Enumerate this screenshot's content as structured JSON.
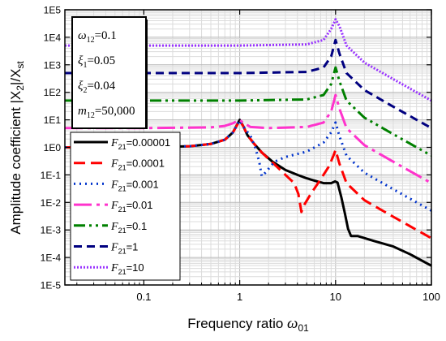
{
  "chart_data": {
    "type": "line",
    "xlabel_text": "Frequency ratio ",
    "xlabel_symbol": "ω",
    "xlabel_sub": "01",
    "ylabel": "Amplitude coefficient |X",
    "ylabel_sub": "2",
    "ylabel_tail": "|/X",
    "ylabel_sub2": "st",
    "x_scale": "log",
    "y_scale": "log",
    "xlim": [
      0.015,
      100
    ],
    "ylim": [
      1e-05,
      100000
    ],
    "x_ticks": [
      {
        "value": 0.1,
        "label": "0.1"
      },
      {
        "value": 1,
        "label": "1"
      },
      {
        "value": 10,
        "label": "10"
      },
      {
        "value": 100,
        "label": "100"
      }
    ],
    "y_ticks": [
      {
        "value": 1e-05,
        "label": "1E-5"
      },
      {
        "value": 0.0001,
        "label": "1E-4"
      },
      {
        "value": 0.001,
        "label": "1E-3"
      },
      {
        "value": 0.01,
        "label": "1E-2"
      },
      {
        "value": 0.1,
        "label": "1E-1"
      },
      {
        "value": 1,
        "label": "1E0"
      },
      {
        "value": 10,
        "label": "1E1"
      },
      {
        "value": 100,
        "label": "1E2"
      },
      {
        "value": 1000,
        "label": "1E3"
      },
      {
        "value": 10000,
        "label": "1E4"
      },
      {
        "value": 100000,
        "label": "1E5"
      }
    ],
    "grid": true,
    "legend_position": "left-middle",
    "parameters_box": {
      "position": "top-left",
      "items": [
        {
          "symbol": "ω",
          "sub": "12",
          "value": "=0.1"
        },
        {
          "symbol": "ξ",
          "sub": "1",
          "value": "=0.05"
        },
        {
          "symbol": "ξ",
          "sub": "2",
          "value": "=0.04"
        },
        {
          "symbol": "m",
          "sub": "12",
          "value": "=50,000"
        }
      ]
    },
    "series": [
      {
        "name": "=0.00001",
        "legend_symbol": "F",
        "legend_sub": "21",
        "color": "#000000",
        "dash": "solid",
        "points": [
          [
            0.015,
            1.0
          ],
          [
            0.1,
            1.0
          ],
          [
            0.3,
            1.1
          ],
          [
            0.5,
            1.33
          ],
          [
            0.7,
            1.9
          ],
          [
            0.85,
            3.5
          ],
          [
            1.0,
            10
          ],
          [
            1.1,
            5.5
          ],
          [
            1.2,
            2.8
          ],
          [
            1.4,
            1.4
          ],
          [
            1.7,
            0.65
          ],
          [
            2.2,
            0.3
          ],
          [
            3.0,
            0.15
          ],
          [
            4.0,
            0.1
          ],
          [
            5.0,
            0.075
          ],
          [
            6.0,
            0.062
          ],
          [
            7.5,
            0.05
          ],
          [
            9.0,
            0.05
          ],
          [
            9.9,
            0.058
          ],
          [
            10.5,
            0.052
          ],
          [
            11.5,
            0.015
          ],
          [
            12.5,
            0.004
          ],
          [
            13.5,
            0.0011
          ],
          [
            14.5,
            0.0006
          ],
          [
            17,
            0.0006
          ],
          [
            25,
            0.0004
          ],
          [
            40,
            0.00025
          ],
          [
            60,
            0.00013
          ],
          [
            100,
            5e-05
          ]
        ]
      },
      {
        "name": "=0.0001",
        "legend_symbol": "F",
        "legend_sub": "21",
        "color": "#ff0000",
        "dash": "14,7",
        "points": [
          [
            0.015,
            1.0
          ],
          [
            0.1,
            1.0
          ],
          [
            0.3,
            1.1
          ],
          [
            0.5,
            1.33
          ],
          [
            0.7,
            1.9
          ],
          [
            0.85,
            3.5
          ],
          [
            1.0,
            9.5
          ],
          [
            1.1,
            5.5
          ],
          [
            1.2,
            2.8
          ],
          [
            1.4,
            1.4
          ],
          [
            1.7,
            0.65
          ],
          [
            2.2,
            0.28
          ],
          [
            3.0,
            0.1
          ],
          [
            3.7,
            0.05
          ],
          [
            4.1,
            0.02
          ],
          [
            4.4,
            0.0045
          ],
          [
            4.7,
            0.008
          ],
          [
            5.5,
            0.02
          ],
          [
            7.0,
            0.07
          ],
          [
            8.5,
            0.2
          ],
          [
            9.5,
            0.5
          ],
          [
            10,
            0.8
          ],
          [
            11,
            0.25
          ],
          [
            13,
            0.05
          ],
          [
            20,
            0.012
          ],
          [
            40,
            0.003
          ],
          [
            100,
            0.0005
          ]
        ]
      },
      {
        "name": "=0.001",
        "legend_symbol": "F",
        "legend_sub": "21",
        "color": "#0033cc",
        "dash": "2,5",
        "points": [
          [
            0.015,
            1.0
          ],
          [
            0.1,
            1.0
          ],
          [
            0.3,
            1.1
          ],
          [
            0.5,
            1.33
          ],
          [
            0.7,
            1.9
          ],
          [
            0.85,
            3.5
          ],
          [
            1.0,
            9.5
          ],
          [
            1.1,
            5.5
          ],
          [
            1.3,
            2.5
          ],
          [
            1.45,
            1.0
          ],
          [
            1.6,
            0.3
          ],
          [
            1.7,
            0.09
          ],
          [
            1.85,
            0.12
          ],
          [
            2.3,
            0.3
          ],
          [
            3.0,
            0.45
          ],
          [
            5.0,
            0.7
          ],
          [
            7.5,
            1.5
          ],
          [
            9.0,
            3.5
          ],
          [
            10,
            8
          ],
          [
            11,
            2.5
          ],
          [
            13,
            0.5
          ],
          [
            20,
            0.12
          ],
          [
            40,
            0.03
          ],
          [
            100,
            0.005
          ]
        ]
      },
      {
        "name": "=0.01",
        "legend_symbol": "F",
        "legend_sub": "21",
        "color": "#ff33cc",
        "dash": "22,6,4,6",
        "points": [
          [
            0.015,
            5.0
          ],
          [
            0.1,
            5.0
          ],
          [
            0.5,
            5.3
          ],
          [
            0.7,
            6.0
          ],
          [
            0.85,
            7.5
          ],
          [
            1.0,
            10
          ],
          [
            1.1,
            7.5
          ],
          [
            1.3,
            5.5
          ],
          [
            2.0,
            5.0
          ],
          [
            5.0,
            5.5
          ],
          [
            7.5,
            8
          ],
          [
            9.0,
            20
          ],
          [
            10,
            80
          ],
          [
            11,
            25
          ],
          [
            13,
            5
          ],
          [
            20,
            1.2
          ],
          [
            40,
            0.3
          ],
          [
            100,
            0.05
          ]
        ]
      },
      {
        "name": "=0.1",
        "legend_symbol": "F",
        "legend_sub": "21",
        "color": "#008000",
        "dash": "14,5,3,5,3,5",
        "points": [
          [
            0.015,
            50
          ],
          [
            0.1,
            50
          ],
          [
            1.0,
            50
          ],
          [
            5.0,
            55
          ],
          [
            7.5,
            80
          ],
          [
            9.0,
            200
          ],
          [
            10,
            800
          ],
          [
            11,
            250
          ],
          [
            13,
            50
          ],
          [
            20,
            12
          ],
          [
            40,
            3
          ],
          [
            100,
            0.5
          ]
        ]
      },
      {
        "name": "=1",
        "legend_symbol": "F",
        "legend_sub": "21",
        "color": "#000080",
        "dash": "10,6",
        "points": [
          [
            0.015,
            500
          ],
          [
            0.1,
            500
          ],
          [
            1.0,
            500
          ],
          [
            5.0,
            550
          ],
          [
            7.5,
            800
          ],
          [
            9.0,
            2000
          ],
          [
            10,
            8000
          ],
          [
            11,
            2500
          ],
          [
            13,
            500
          ],
          [
            20,
            120
          ],
          [
            40,
            30
          ],
          [
            100,
            5
          ]
        ]
      },
      {
        "name": "=10",
        "legend_symbol": "F",
        "legend_sub": "21",
        "color": "#9933ff",
        "dash": "2,2",
        "points": [
          [
            0.015,
            5000
          ],
          [
            0.1,
            5000
          ],
          [
            1.0,
            5000
          ],
          [
            5.0,
            5500
          ],
          [
            7.5,
            8000
          ],
          [
            9.0,
            20000
          ],
          [
            10,
            45000
          ],
          [
            11,
            25000
          ],
          [
            13,
            5000
          ],
          [
            20,
            1200
          ],
          [
            40,
            300
          ],
          [
            100,
            50
          ]
        ]
      }
    ]
  }
}
